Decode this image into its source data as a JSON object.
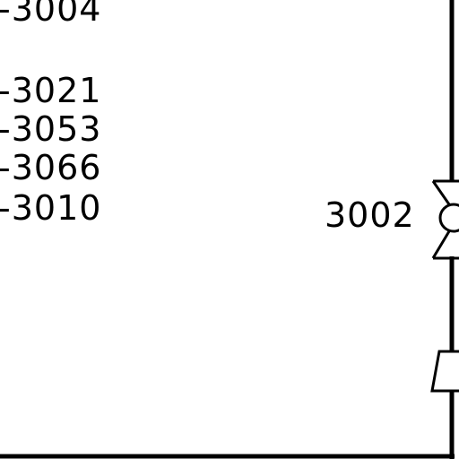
{
  "drawing": {
    "line_color": "#000000",
    "background_color": "#ffffff",
    "left_labels": [
      {
        "text": "-3004"
      },
      {
        "text": "-3021"
      },
      {
        "text": "-3053"
      },
      {
        "text": "-3066"
      },
      {
        "text": "-3010"
      }
    ],
    "valve_label": "3002",
    "symbols": [
      {
        "name": "valve-symbol"
      },
      {
        "name": "reducer-symbol"
      }
    ]
  }
}
